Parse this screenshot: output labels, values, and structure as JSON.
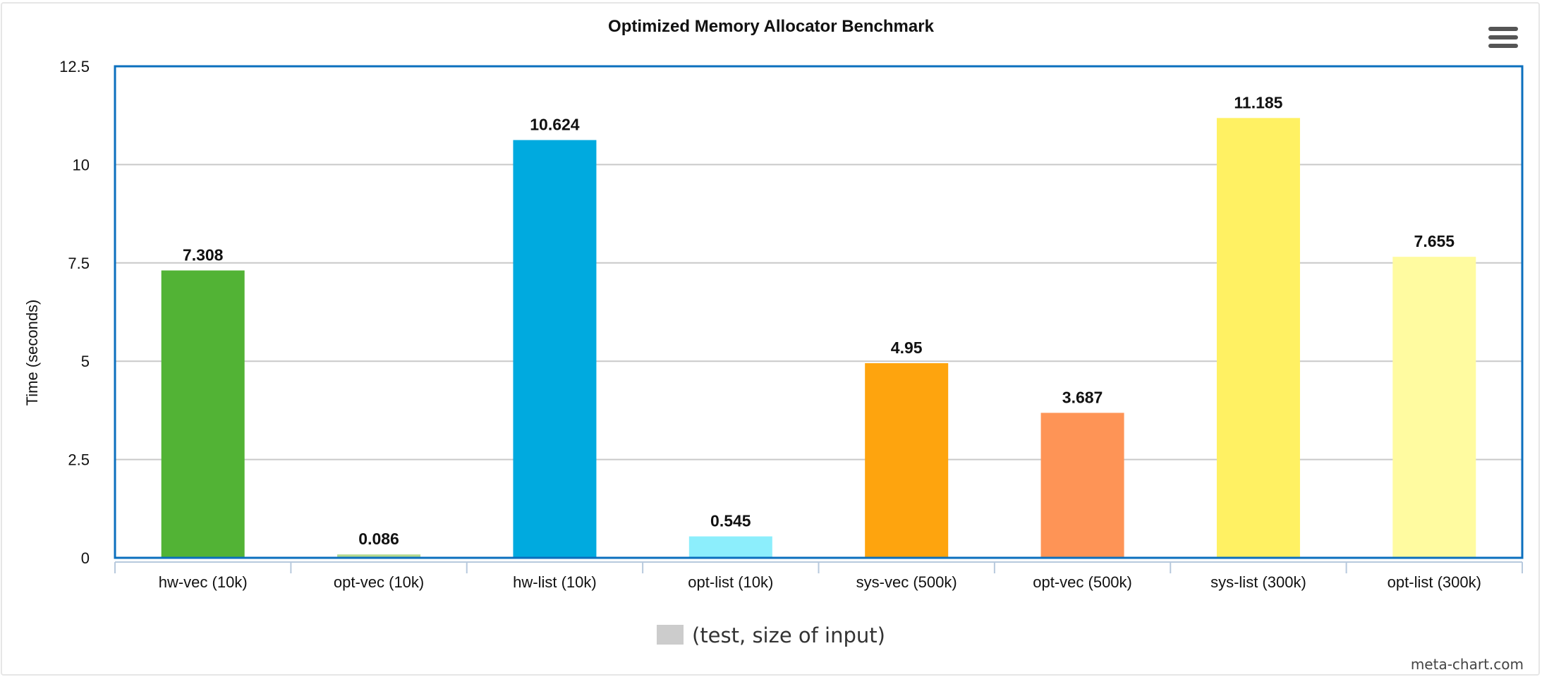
{
  "chart_data": {
    "type": "bar",
    "title": "Optimized Memory Allocator Benchmark",
    "xlabel": "",
    "ylabel": "Time (seconds)",
    "ylim": [
      0,
      12.5
    ],
    "yticks": [
      "0",
      "2.5",
      "5",
      "7.5",
      "10",
      "12.5"
    ],
    "categories": [
      "hw-vec (10k)",
      "opt-vec (10k)",
      "hw-list (10k)",
      "opt-list (10k)",
      "sys-vec (500k)",
      "opt-vec (500k)",
      "sys-list (300k)",
      "opt-list (300k)"
    ],
    "values": [
      7.308,
      0.086,
      10.624,
      0.545,
      4.95,
      3.687,
      11.185,
      7.655
    ],
    "data_labels": [
      "7.308",
      "0.086",
      "10.624",
      "0.545",
      "4.95",
      "3.687",
      "11.185",
      "7.655"
    ],
    "colors": [
      "#52b335",
      "#b3d98f",
      "#00aadf",
      "#8ceefc",
      "#fea40e",
      "#fe9456",
      "#fff163",
      "#fffba0"
    ],
    "legend": {
      "label": "(test, size of input)",
      "position": "bottom-center",
      "color": "#cccccc"
    },
    "grid": true,
    "border_color": "#0b6fbe"
  },
  "watermark": "meta-chart.com",
  "menu_icon": "hamburger-menu-icon"
}
